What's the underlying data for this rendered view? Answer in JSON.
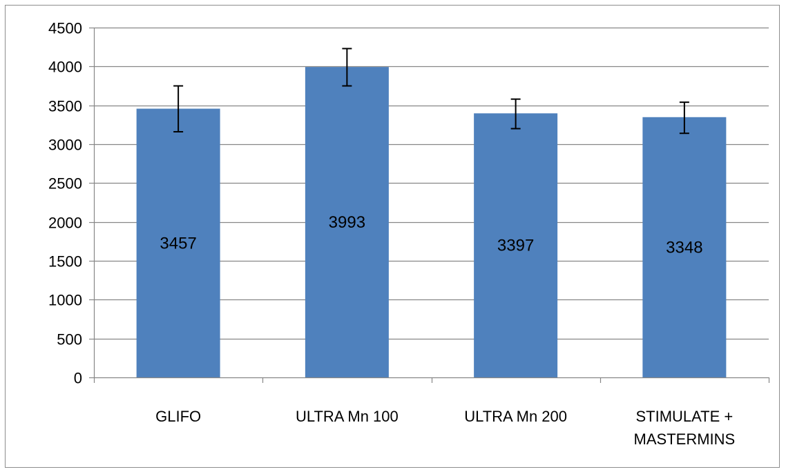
{
  "chart_data": {
    "type": "bar",
    "categories": [
      "GLIFO",
      "ULTRA Mn 100",
      "ULTRA Mn 200",
      "STIMULATE + MASTERMINS"
    ],
    "category_label_lines": [
      [
        "GLIFO"
      ],
      [
        "ULTRA Mn 100"
      ],
      [
        "ULTRA Mn 200"
      ],
      [
        "STIMULATE +",
        "MASTERMINS"
      ]
    ],
    "values": [
      3457,
      3993,
      3397,
      3348
    ],
    "data_labels": [
      "3457",
      "3993",
      "3397",
      "3348"
    ],
    "error_bars": [
      {
        "low": 3160,
        "high": 3750
      },
      {
        "low": 3750,
        "high": 4230
      },
      {
        "low": 3200,
        "high": 3580
      },
      {
        "low": 3140,
        "high": 3540
      }
    ],
    "ylim": [
      0,
      4500
    ],
    "yticks": [
      0,
      500,
      1000,
      1500,
      2000,
      2500,
      3000,
      3500,
      4000,
      4500
    ],
    "grid": true,
    "legend": "none",
    "title": "",
    "xlabel": "",
    "ylabel": "",
    "colors": {
      "bar": "#4f81bd",
      "grid": "#868686",
      "axis": "#868686",
      "error": "#000000"
    }
  }
}
